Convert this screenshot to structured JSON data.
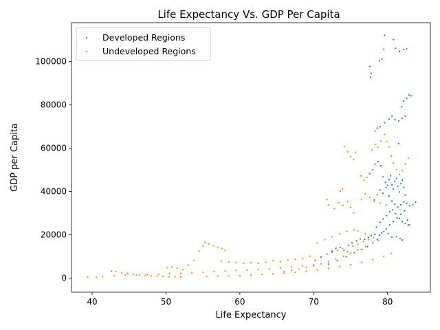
{
  "chart_data": {
    "type": "scatter",
    "title": "Life Expectancy Vs. GDP Per Capita",
    "xlabel": "Life Expectancy",
    "ylabel": "GDP per Capita",
    "xlim": [
      37.2,
      85.8
    ],
    "ylim": [
      -6500,
      118000
    ],
    "xticks": [
      40,
      50,
      60,
      70,
      80
    ],
    "yticks": [
      0,
      20000,
      40000,
      60000,
      80000,
      100000
    ],
    "grid": false,
    "legend_position": "top-left",
    "series": [
      {
        "name": "Developed Regions",
        "color": "#1f77b4",
        "points": [
          [
            70.2,
            8200
          ],
          [
            71.0,
            9800
          ],
          [
            71.8,
            11200
          ],
          [
            72.5,
            12500
          ],
          [
            73.0,
            13800
          ],
          [
            73.6,
            14200
          ],
          [
            74.1,
            12800
          ],
          [
            74.7,
            15100
          ],
          [
            75.2,
            16300
          ],
          [
            75.8,
            17200
          ],
          [
            76.3,
            18100
          ],
          [
            76.9,
            17900
          ],
          [
            77.4,
            18800
          ],
          [
            77.8,
            19500
          ],
          [
            78.3,
            20200
          ],
          [
            78.9,
            19800
          ],
          [
            79.5,
            21500
          ],
          [
            80.1,
            20600
          ],
          [
            80.6,
            18900
          ],
          [
            81.2,
            19300
          ],
          [
            81.7,
            18200
          ],
          [
            82.0,
            17600
          ],
          [
            72.0,
            6500
          ],
          [
            73.2,
            8100
          ],
          [
            74.4,
            9900
          ],
          [
            75.5,
            11700
          ],
          [
            76.5,
            13200
          ],
          [
            77.3,
            14600
          ],
          [
            78.0,
            16400
          ],
          [
            78.6,
            17800
          ],
          [
            79.2,
            20900
          ],
          [
            79.8,
            22700
          ],
          [
            80.3,
            24600
          ],
          [
            80.8,
            26200
          ],
          [
            81.3,
            27900
          ],
          [
            81.8,
            29500
          ],
          [
            82.3,
            31100
          ],
          [
            82.7,
            26800
          ],
          [
            83.0,
            24500
          ],
          [
            77.6,
            48200
          ],
          [
            78.0,
            50100
          ],
          [
            78.3,
            52600
          ],
          [
            78.7,
            53800
          ],
          [
            79.1,
            51900
          ],
          [
            79.4,
            46800
          ],
          [
            79.7,
            44200
          ],
          [
            80.0,
            42900
          ],
          [
            80.2,
            45600
          ],
          [
            80.4,
            47300
          ],
          [
            80.6,
            43100
          ],
          [
            80.8,
            41200
          ],
          [
            81.0,
            44800
          ],
          [
            81.2,
            46100
          ],
          [
            81.4,
            42500
          ],
          [
            81.6,
            39800
          ],
          [
            81.8,
            43600
          ],
          [
            82.0,
            45300
          ],
          [
            82.2,
            41900
          ],
          [
            82.4,
            38400
          ],
          [
            78.2,
            36200
          ],
          [
            78.6,
            38500
          ],
          [
            79.0,
            40700
          ],
          [
            79.4,
            39200
          ],
          [
            79.8,
            41800
          ],
          [
            80.2,
            37900
          ],
          [
            80.6,
            35600
          ],
          [
            81.0,
            34100
          ],
          [
            81.4,
            32800
          ],
          [
            81.8,
            33900
          ],
          [
            82.2,
            35200
          ],
          [
            82.6,
            34600
          ],
          [
            83.0,
            33400
          ],
          [
            83.4,
            33900
          ],
          [
            83.8,
            35100
          ],
          [
            78.5,
            23600
          ],
          [
            79.0,
            25800
          ],
          [
            79.4,
            27300
          ],
          [
            79.9,
            28900
          ],
          [
            80.3,
            30700
          ],
          [
            80.7,
            31500
          ],
          [
            81.1,
            29800
          ],
          [
            81.6,
            27600
          ],
          [
            82.0,
            26100
          ],
          [
            82.4,
            25200
          ],
          [
            82.8,
            24600
          ],
          [
            78.3,
            67900
          ],
          [
            78.6,
            69300
          ],
          [
            79.0,
            69900
          ],
          [
            79.6,
            71800
          ],
          [
            80.2,
            73400
          ],
          [
            80.6,
            74900
          ],
          [
            81.0,
            73200
          ],
          [
            81.5,
            72600
          ],
          [
            82.0,
            73900
          ],
          [
            82.4,
            74800
          ],
          [
            81.5,
            62100
          ],
          [
            81.9,
            79200
          ],
          [
            82.2,
            81800
          ],
          [
            82.6,
            83100
          ],
          [
            82.9,
            84600
          ],
          [
            83.2,
            84200
          ],
          [
            77.6,
            97800
          ],
          [
            77.8,
            94600
          ],
          [
            77.7,
            92800
          ],
          [
            78.9,
            100400
          ],
          [
            79.2,
            101300
          ],
          [
            79.5,
            105700
          ],
          [
            80.8,
            110200
          ],
          [
            81.1,
            106200
          ],
          [
            81.6,
            104800
          ],
          [
            82.2,
            105600
          ],
          [
            82.6,
            105900
          ],
          [
            79.6,
            112200
          ]
        ]
      },
      {
        "name": "Undeveloped Regions",
        "color": "#ff7f0e",
        "points": [
          [
            39.4,
            500
          ],
          [
            40.6,
            400
          ],
          [
            41.4,
            600
          ],
          [
            42.6,
            3200
          ],
          [
            43.2,
            3100
          ],
          [
            44.0,
            2500
          ],
          [
            44.8,
            2200
          ],
          [
            45.6,
            1800
          ],
          [
            46.4,
            1500
          ],
          [
            47.2,
            1300
          ],
          [
            48.0,
            1100
          ],
          [
            48.8,
            900
          ],
          [
            49.6,
            800
          ],
          [
            50.4,
            700
          ],
          [
            51.2,
            650
          ],
          [
            52.0,
            600
          ],
          [
            43.0,
            1200
          ],
          [
            44.5,
            1300
          ],
          [
            46.0,
            1450
          ],
          [
            47.5,
            1600
          ],
          [
            49.0,
            1800
          ],
          [
            50.5,
            2000
          ],
          [
            52.0,
            2200
          ],
          [
            53.5,
            2400
          ],
          [
            55.0,
            2700
          ],
          [
            56.5,
            3000
          ],
          [
            58.0,
            3200
          ],
          [
            59.5,
            3500
          ],
          [
            61.0,
            3700
          ],
          [
            62.5,
            4000
          ],
          [
            64.0,
            4300
          ],
          [
            65.5,
            4700
          ],
          [
            67.0,
            5100
          ],
          [
            68.5,
            5600
          ],
          [
            70.0,
            6200
          ],
          [
            50.2,
            4800
          ],
          [
            50.8,
            5200
          ],
          [
            51.5,
            4600
          ],
          [
            52.3,
            3900
          ],
          [
            53.0,
            6000
          ],
          [
            53.8,
            8200
          ],
          [
            54.5,
            12400
          ],
          [
            55.0,
            14800
          ],
          [
            55.3,
            16500
          ],
          [
            55.8,
            15800
          ],
          [
            56.4,
            14900
          ],
          [
            57.0,
            14300
          ],
          [
            57.6,
            13700
          ],
          [
            58.0,
            12800
          ],
          [
            57.5,
            7800
          ],
          [
            58.5,
            7500
          ],
          [
            59.5,
            7200
          ],
          [
            60.5,
            6900
          ],
          [
            61.5,
            7100
          ],
          [
            62.5,
            6800
          ],
          [
            63.5,
            7400
          ],
          [
            64.5,
            8100
          ],
          [
            65.5,
            7600
          ],
          [
            66.5,
            8300
          ],
          [
            67.5,
            8700
          ],
          [
            68.5,
            9200
          ],
          [
            69.5,
            10100
          ],
          [
            55.5,
            800
          ],
          [
            57.0,
            900
          ],
          [
            58.5,
            1050
          ],
          [
            60.0,
            1200
          ],
          [
            61.5,
            1400
          ],
          [
            63.0,
            1650
          ],
          [
            64.5,
            1950
          ],
          [
            66.0,
            2300
          ],
          [
            67.5,
            2700
          ],
          [
            69.0,
            3200
          ],
          [
            70.5,
            3800
          ],
          [
            72.0,
            4500
          ],
          [
            73.5,
            5300
          ],
          [
            75.0,
            6200
          ],
          [
            76.5,
            7300
          ],
          [
            78.0,
            8500
          ],
          [
            79.5,
            10000
          ],
          [
            80.5,
            11500
          ],
          [
            66.0,
            3000
          ],
          [
            67.0,
            3600
          ],
          [
            68.0,
            4200
          ],
          [
            69.0,
            4900
          ],
          [
            70.0,
            5700
          ],
          [
            71.0,
            6600
          ],
          [
            72.0,
            7600
          ],
          [
            73.0,
            8800
          ],
          [
            74.0,
            10100
          ],
          [
            75.0,
            11500
          ],
          [
            76.0,
            13000
          ],
          [
            77.0,
            14600
          ],
          [
            78.0,
            16300
          ],
          [
            70.5,
            16200
          ],
          [
            71.5,
            17800
          ],
          [
            72.5,
            19100
          ],
          [
            73.5,
            20400
          ],
          [
            74.5,
            21600
          ],
          [
            75.5,
            22300
          ],
          [
            76.0,
            21800
          ],
          [
            77.0,
            20500
          ],
          [
            71.8,
            36300
          ],
          [
            72.0,
            33800
          ],
          [
            72.8,
            32100
          ],
          [
            73.4,
            34800
          ],
          [
            74.0,
            33600
          ],
          [
            74.6,
            35300
          ],
          [
            75.0,
            32700
          ],
          [
            75.4,
            30100
          ],
          [
            73.6,
            40200
          ],
          [
            73.9,
            41100
          ],
          [
            74.2,
            60800
          ],
          [
            74.6,
            58400
          ],
          [
            75.0,
            56200
          ],
          [
            75.4,
            54800
          ],
          [
            75.7,
            58100
          ],
          [
            76.4,
            47200
          ],
          [
            76.8,
            45100
          ],
          [
            77.2,
            46500
          ],
          [
            77.5,
            48300
          ],
          [
            77.9,
            59300
          ],
          [
            78.3,
            61800
          ],
          [
            78.7,
            60400
          ],
          [
            79.1,
            63200
          ],
          [
            79.6,
            66400
          ],
          [
            79.9,
            63100
          ],
          [
            80.2,
            60700
          ],
          [
            80.5,
            56400
          ],
          [
            80.8,
            53200
          ],
          [
            81.2,
            50100
          ],
          [
            81.6,
            47800
          ],
          [
            82.0,
            49600
          ],
          [
            82.4,
            52700
          ],
          [
            82.8,
            55400
          ],
          [
            76.5,
            36500
          ],
          [
            77.0,
            38900
          ],
          [
            77.6,
            37200
          ],
          [
            78.2,
            35400
          ],
          [
            79.0,
            34600
          ],
          [
            79.8,
            33800
          ],
          [
            72.5,
            11800
          ],
          [
            73.2,
            12900
          ],
          [
            73.9,
            13700
          ],
          [
            74.6,
            12200
          ],
          [
            75.3,
            14800
          ],
          [
            76.0,
            15600
          ],
          [
            76.7,
            16900
          ],
          [
            77.4,
            17800
          ],
          [
            78.1,
            18600
          ],
          [
            78.8,
            17400
          ]
        ]
      }
    ]
  }
}
